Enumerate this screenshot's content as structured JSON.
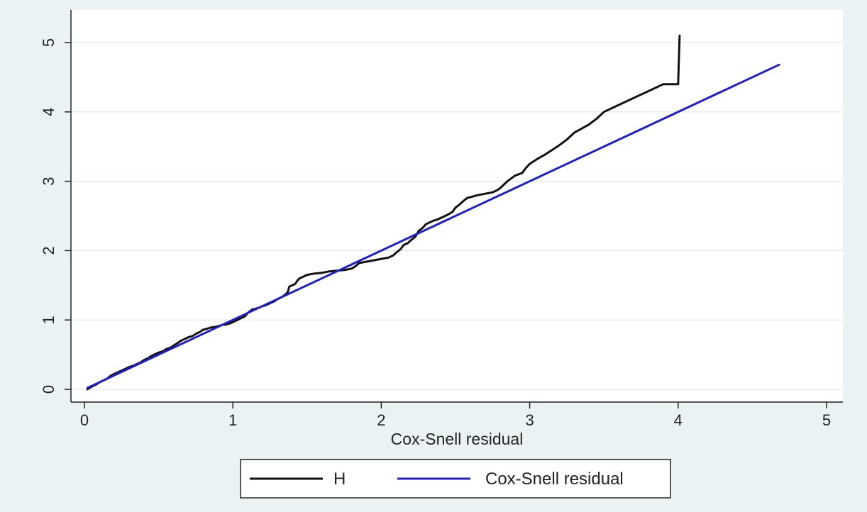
{
  "chart_data": {
    "type": "line",
    "title": "",
    "xlabel": "Cox-Snell residual",
    "ylabel": "",
    "xlim": [
      0,
      5
    ],
    "ylim": [
      0,
      5
    ],
    "xticks": [
      "0",
      "1",
      "2",
      "3",
      "4",
      "5"
    ],
    "yticks": [
      "0",
      "1",
      "2",
      "3",
      "4",
      "5"
    ],
    "grid": "horizontal",
    "legend": "bottom",
    "colors": {
      "background": "#eaf2f3",
      "plot": "#ffffff",
      "H": "#111111",
      "cox": "#1f1fc8"
    },
    "series": [
      {
        "name": "H",
        "color": "#111111",
        "x": [
          0.02,
          0.05,
          0.08,
          0.1,
          0.13,
          0.15,
          0.18,
          0.2,
          0.23,
          0.25,
          0.28,
          0.3,
          0.33,
          0.35,
          0.38,
          0.4,
          0.43,
          0.45,
          0.48,
          0.5,
          0.53,
          0.55,
          0.58,
          0.6,
          0.63,
          0.65,
          0.68,
          0.7,
          0.73,
          0.75,
          0.78,
          0.8,
          0.82,
          0.85,
          0.88,
          0.9,
          0.93,
          0.95,
          0.98,
          1.0,
          1.03,
          1.05,
          1.08,
          1.1,
          1.13,
          1.15,
          1.18,
          1.2,
          1.22,
          1.25,
          1.28,
          1.3,
          1.33,
          1.35,
          1.37,
          1.38,
          1.4,
          1.42,
          1.44,
          1.45,
          1.48,
          1.5,
          1.55,
          1.6,
          1.65,
          1.7,
          1.75,
          1.8,
          1.83,
          1.85,
          1.9,
          1.95,
          2.0,
          2.05,
          2.08,
          2.1,
          2.13,
          2.15,
          2.18,
          2.2,
          2.23,
          2.25,
          2.28,
          2.3,
          2.32,
          2.35,
          2.38,
          2.4,
          2.43,
          2.45,
          2.48,
          2.5,
          2.53,
          2.55,
          2.58,
          2.6,
          2.65,
          2.7,
          2.75,
          2.78,
          2.8,
          2.85,
          2.9,
          2.95,
          2.97,
          3.0,
          3.05,
          3.1,
          3.15,
          3.2,
          3.25,
          3.3,
          3.35,
          3.4,
          3.45,
          3.5,
          3.6,
          3.7,
          3.8,
          3.9,
          4.0,
          4.01
        ],
        "values": [
          0.0,
          0.04,
          0.07,
          0.1,
          0.13,
          0.15,
          0.2,
          0.22,
          0.25,
          0.27,
          0.3,
          0.32,
          0.34,
          0.36,
          0.39,
          0.42,
          0.45,
          0.48,
          0.51,
          0.53,
          0.55,
          0.58,
          0.6,
          0.63,
          0.67,
          0.7,
          0.73,
          0.75,
          0.77,
          0.8,
          0.83,
          0.86,
          0.87,
          0.89,
          0.9,
          0.91,
          0.93,
          0.93,
          0.95,
          0.97,
          1.0,
          1.02,
          1.05,
          1.1,
          1.15,
          1.16,
          1.18,
          1.2,
          1.21,
          1.24,
          1.27,
          1.3,
          1.33,
          1.36,
          1.4,
          1.48,
          1.5,
          1.52,
          1.58,
          1.6,
          1.63,
          1.65,
          1.67,
          1.68,
          1.7,
          1.71,
          1.72,
          1.74,
          1.78,
          1.82,
          1.84,
          1.86,
          1.88,
          1.9,
          1.93,
          1.97,
          2.02,
          2.08,
          2.11,
          2.15,
          2.2,
          2.28,
          2.33,
          2.38,
          2.4,
          2.43,
          2.45,
          2.47,
          2.5,
          2.52,
          2.56,
          2.62,
          2.67,
          2.71,
          2.76,
          2.77,
          2.8,
          2.82,
          2.84,
          2.87,
          2.9,
          3.0,
          3.08,
          3.12,
          3.18,
          3.25,
          3.32,
          3.38,
          3.45,
          3.52,
          3.6,
          3.7,
          3.76,
          3.82,
          3.9,
          4.0,
          4.1,
          4.2,
          4.3,
          4.4,
          4.4,
          5.1
        ]
      },
      {
        "name": "Cox-Snell residual",
        "color": "#1f1fc8",
        "x": [
          0.02,
          4.68
        ],
        "values": [
          0.02,
          4.68
        ]
      }
    ]
  }
}
